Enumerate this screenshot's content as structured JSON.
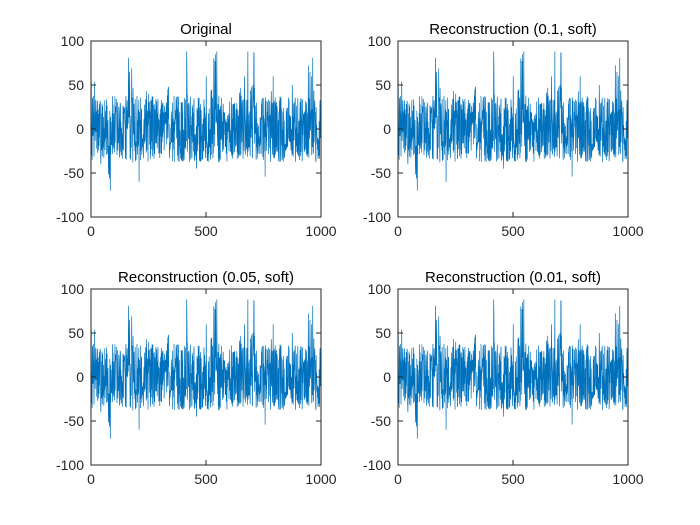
{
  "chart_data": [
    {
      "type": "line",
      "title": "Original",
      "xlim": [
        0,
        1000
      ],
      "ylim": [
        -100,
        100
      ],
      "xticks": [
        "0",
        "500",
        "1000"
      ],
      "yticks": [
        "100",
        "50",
        "0",
        "-50",
        "-100"
      ],
      "grid": false,
      "series": [
        {
          "color": "#0072BD",
          "x_range": [
            1,
            1000
          ],
          "sample_values": [
            55,
            -40,
            -70,
            20,
            65,
            -60,
            40,
            0,
            45,
            -30,
            70,
            -45,
            60,
            85,
            -20,
            30,
            60,
            86,
            -35,
            60,
            20,
            50,
            0,
            60,
            -10
          ]
        }
      ]
    },
    {
      "type": "line",
      "title": "Reconstruction (0.1, soft)",
      "xlim": [
        0,
        1000
      ],
      "ylim": [
        -100,
        100
      ],
      "xticks": [
        "0",
        "500",
        "1000"
      ],
      "yticks": [
        "100",
        "50",
        "0",
        "-50",
        "-100"
      ],
      "grid": false,
      "series": [
        {
          "color": "#0072BD",
          "x_range": [
            1,
            1000
          ],
          "sample_values": [
            55,
            -40,
            -70,
            20,
            65,
            -60,
            40,
            0,
            45,
            -30,
            70,
            -45,
            60,
            85,
            -20,
            30,
            60,
            86,
            -35,
            60,
            20,
            50,
            0,
            60,
            -10
          ]
        }
      ]
    },
    {
      "type": "line",
      "title": "Reconstruction (0.05, soft)",
      "xlim": [
        0,
        1000
      ],
      "ylim": [
        -100,
        100
      ],
      "xticks": [
        "0",
        "500",
        "1000"
      ],
      "yticks": [
        "100",
        "50",
        "0",
        "-50",
        "-100"
      ],
      "grid": false,
      "series": [
        {
          "color": "#0072BD",
          "x_range": [
            1,
            1000
          ],
          "sample_values": [
            55,
            -40,
            -70,
            20,
            65,
            -60,
            40,
            0,
            45,
            -30,
            70,
            -45,
            60,
            85,
            -20,
            30,
            60,
            86,
            -35,
            60,
            20,
            50,
            0,
            60,
            -10
          ]
        }
      ]
    },
    {
      "type": "line",
      "title": "Reconstruction (0.01, soft)",
      "xlim": [
        0,
        1000
      ],
      "ylim": [
        -100,
        100
      ],
      "xticks": [
        "0",
        "500",
        "1000"
      ],
      "yticks": [
        "100",
        "50",
        "0",
        "-50",
        "-100"
      ],
      "grid": false,
      "series": [
        {
          "color": "#0072BD",
          "x_range": [
            1,
            1000
          ],
          "sample_values": [
            55,
            -40,
            -70,
            20,
            65,
            -60,
            40,
            0,
            45,
            -30,
            70,
            -45,
            60,
            85,
            -20,
            30,
            60,
            86,
            -35,
            60,
            20,
            50,
            0,
            60,
            -10
          ]
        }
      ]
    }
  ]
}
